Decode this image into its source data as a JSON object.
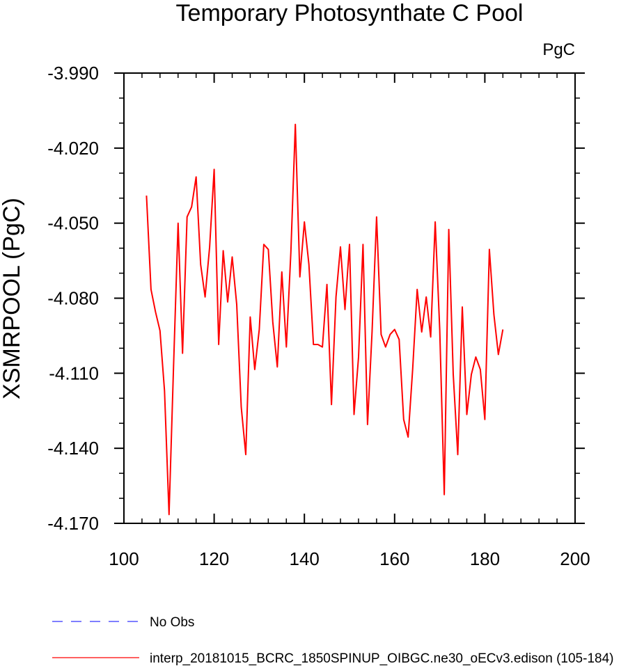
{
  "chart_data": {
    "type": "line",
    "title": "Temporary Photosynthate C Pool",
    "units_label": "PgC",
    "ylabel": "XSMRPOOL  (PgC)",
    "xlabel": "",
    "xlim": [
      100,
      200
    ],
    "ylim": [
      -4.17,
      -3.99
    ],
    "x_ticks": [
      100,
      120,
      140,
      160,
      180,
      200
    ],
    "x_tick_labels": [
      "100",
      "120",
      "140",
      "160",
      "180",
      "200"
    ],
    "y_ticks": [
      -3.99,
      -4.02,
      -4.05,
      -4.08,
      -4.11,
      -4.14,
      -4.17
    ],
    "y_tick_labels": [
      "-3.990",
      "-4.020",
      "-4.050",
      "-4.080",
      "-4.110",
      "-4.140",
      "-4.170"
    ],
    "grid": false,
    "legend_placement": "bottom-left",
    "series": [
      {
        "name": "No Obs",
        "color": "#3333ff",
        "style": "dashed",
        "x": [],
        "y": []
      },
      {
        "name": "interp_20181015_BCRC_1850SPINUP_OIBGC.ne30_oECv3.edison (105-184)",
        "color": "#ff0000",
        "style": "solid",
        "x": [
          105,
          106,
          107,
          108,
          109,
          110,
          111,
          112,
          113,
          114,
          115,
          116,
          117,
          118,
          119,
          120,
          121,
          122,
          123,
          124,
          125,
          126,
          127,
          128,
          129,
          130,
          131,
          132,
          133,
          134,
          135,
          136,
          137,
          138,
          139,
          140,
          141,
          142,
          143,
          144,
          145,
          146,
          147,
          148,
          149,
          150,
          151,
          152,
          153,
          154,
          155,
          156,
          157,
          158,
          159,
          160,
          161,
          162,
          163,
          164,
          165,
          166,
          167,
          168,
          169,
          170,
          171,
          172,
          173,
          174,
          175,
          176,
          177,
          178,
          179,
          180,
          181,
          182,
          183,
          184
        ],
        "y": [
          -4.039,
          -4.0765,
          -4.0855,
          -4.093,
          -4.117,
          -4.1665,
          -4.107,
          -4.05,
          -4.102,
          -4.0475,
          -4.0435,
          -4.0315,
          -4.0665,
          -4.0795,
          -4.0595,
          -4.0285,
          -4.0985,
          -4.061,
          -4.0815,
          -4.0635,
          -4.0825,
          -4.1235,
          -4.1425,
          -4.0875,
          -4.1085,
          -4.0925,
          -4.0585,
          -4.0605,
          -4.0895,
          -4.1075,
          -4.0695,
          -4.0995,
          -4.0615,
          -4.0105,
          -4.0715,
          -4.0495,
          -4.0665,
          -4.0985,
          -4.0985,
          -4.0995,
          -4.0745,
          -4.1225,
          -4.0795,
          -4.0595,
          -4.0845,
          -4.0585,
          -4.1265,
          -4.1035,
          -4.0585,
          -4.1305,
          -4.0935,
          -4.0475,
          -4.0945,
          -4.0995,
          -4.0945,
          -4.0925,
          -4.0965,
          -4.1285,
          -4.1355,
          -4.1085,
          -4.0765,
          -4.0935,
          -4.0795,
          -4.0955,
          -4.0495,
          -4.0925,
          -4.1585,
          -4.0525,
          -4.1105,
          -4.1425,
          -4.0835,
          -4.1265,
          -4.1105,
          -4.1035,
          -4.1085,
          -4.1285,
          -4.0605,
          -4.0865,
          -4.1025,
          -4.0925
        ]
      }
    ]
  }
}
